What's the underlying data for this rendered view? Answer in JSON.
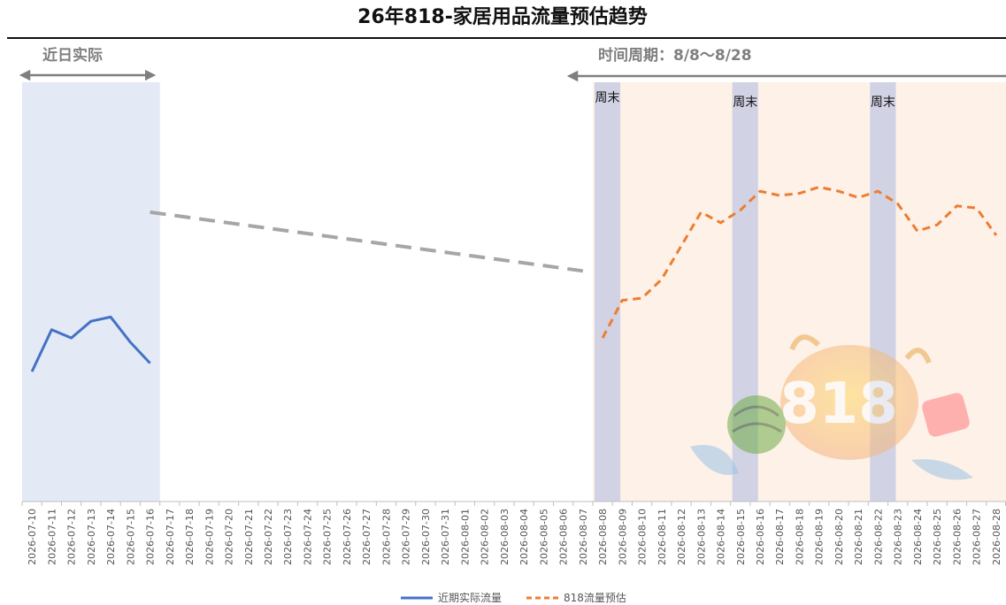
{
  "chart_data": {
    "type": "line",
    "title": "26年818-家居用品流量预估趋势",
    "xlabel": "",
    "ylabel": "",
    "ylim": [
      0,
      100
    ],
    "grid": false,
    "legend_position": "bottom",
    "categories": [
      "2026-07-10",
      "2026-07-11",
      "2026-07-12",
      "2026-07-13",
      "2026-07-14",
      "2026-07-15",
      "2026-07-16",
      "2026-07-17",
      "2026-07-18",
      "2026-07-19",
      "2026-07-20",
      "2026-07-21",
      "2026-07-22",
      "2026-07-23",
      "2026-07-24",
      "2026-07-25",
      "2026-07-26",
      "2026-07-27",
      "2026-07-28",
      "2026-07-29",
      "2026-07-30",
      "2026-07-31",
      "2026-08-01",
      "2026-08-02",
      "2026-08-03",
      "2026-08-04",
      "2026-08-05",
      "2026-08-06",
      "2026-08-07",
      "2026-08-08",
      "2026-08-09",
      "2026-08-10",
      "2026-08-11",
      "2026-08-12",
      "2026-08-13",
      "2026-08-14",
      "2026-08-15",
      "2026-08-16",
      "2026-08-17",
      "2026-08-18",
      "2026-08-19",
      "2026-08-20",
      "2026-08-21",
      "2026-08-22",
      "2026-08-23",
      "2026-08-24",
      "2026-08-25",
      "2026-08-26",
      "2026-08-27",
      "2026-08-28"
    ],
    "series": [
      {
        "name": "近期实际流量",
        "color": "#4472c4",
        "style": "solid",
        "values": [
          31,
          41,
          39,
          43,
          44,
          38,
          33,
          null,
          null,
          null,
          null,
          null,
          null,
          null,
          null,
          null,
          null,
          null,
          null,
          null,
          null,
          null,
          null,
          null,
          null,
          null,
          null,
          null,
          null,
          null,
          null,
          null,
          null,
          null,
          null,
          null,
          null,
          null,
          null,
          null,
          null,
          null,
          null,
          null,
          null,
          null,
          null,
          null,
          null,
          null
        ]
      },
      {
        "name": "",
        "color": "#a6a6a6",
        "style": "dashed",
        "values": [
          null,
          null,
          null,
          null,
          null,
          null,
          69,
          null,
          null,
          null,
          null,
          null,
          null,
          null,
          null,
          null,
          null,
          null,
          null,
          null,
          null,
          null,
          null,
          null,
          null,
          null,
          null,
          null,
          55,
          null,
          null,
          null,
          null,
          null,
          null,
          null,
          null,
          null,
          null,
          null,
          null,
          null,
          null,
          null,
          null,
          null,
          null,
          null,
          null,
          null
        ]
      },
      {
        "name": "818流量预估",
        "color": "#ed7d31",
        "style": "dashed",
        "values": [
          null,
          null,
          null,
          null,
          null,
          null,
          null,
          null,
          null,
          null,
          null,
          null,
          null,
          null,
          null,
          null,
          null,
          null,
          null,
          null,
          null,
          null,
          null,
          null,
          null,
          null,
          null,
          null,
          null,
          39,
          48,
          48.5,
          53,
          61,
          69,
          66.5,
          69.5,
          74,
          73,
          73.5,
          75,
          74,
          72.5,
          74,
          71,
          64.5,
          66,
          70.5,
          70,
          63.5
        ]
      }
    ],
    "regions": [
      {
        "label": "近日实际",
        "start": "2026-07-10",
        "end": "2026-07-16",
        "color": "#dae3f3"
      },
      {
        "label": "时间周期：8/8～8/28",
        "start": "2026-08-08",
        "end": "2026-08-28",
        "color": "#fbe5d6"
      }
    ],
    "weekend_bands": [
      {
        "label": "周末",
        "start": "2026-08-08",
        "end": "2026-08-09"
      },
      {
        "label": "周末",
        "start": "2026-08-15",
        "end": "2026-08-16"
      },
      {
        "label": "周末",
        "start": "2026-08-22",
        "end": "2026-08-23"
      }
    ],
    "decoration": {
      "badge_text": "818"
    }
  }
}
